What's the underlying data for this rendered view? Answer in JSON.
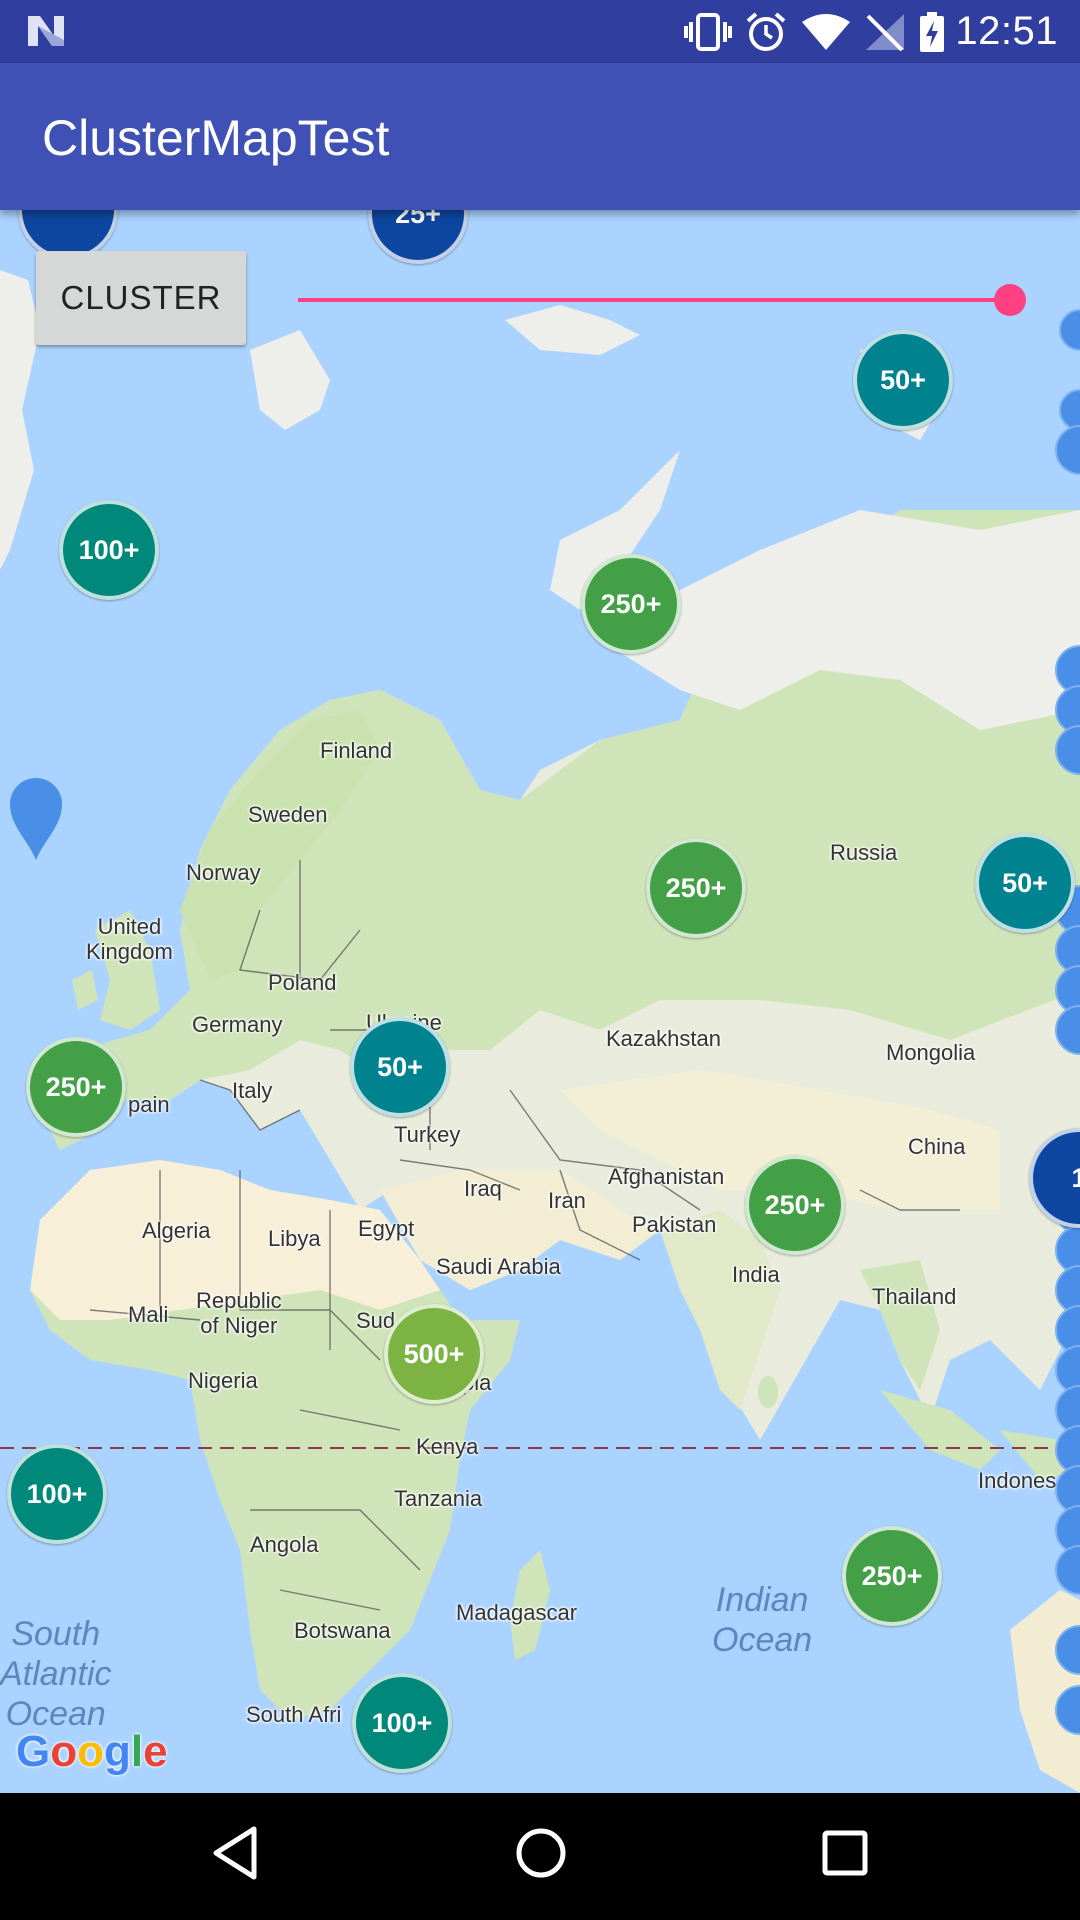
{
  "status_bar": {
    "time": "12:51",
    "icons": [
      "android-n-icon",
      "vibrate-icon",
      "alarm-icon",
      "wifi-icon",
      "no-sim-icon",
      "battery-charging-icon"
    ]
  },
  "app_bar": {
    "title": "ClusterMapTest"
  },
  "controls": {
    "cluster_button": "CLUSTER",
    "slider_value": 1.0
  },
  "map": {
    "countries": [
      {
        "id": "finland",
        "label": "Finland"
      },
      {
        "id": "sweden",
        "label": "Sweden"
      },
      {
        "id": "norway",
        "label": "Norway"
      },
      {
        "id": "united-kingdom",
        "label": "United\nKingdom"
      },
      {
        "id": "poland",
        "label": "Poland"
      },
      {
        "id": "germany",
        "label": "Germany"
      },
      {
        "id": "ukraine",
        "label": "Ukraine"
      },
      {
        "id": "italy",
        "label": "Italy"
      },
      {
        "id": "spain",
        "label": "pain"
      },
      {
        "id": "turkey",
        "label": "Turkey"
      },
      {
        "id": "russia",
        "label": "Russia"
      },
      {
        "id": "kazakhstan",
        "label": "Kazakhstan"
      },
      {
        "id": "mongolia",
        "label": "Mongolia"
      },
      {
        "id": "china",
        "label": "China"
      },
      {
        "id": "iraq",
        "label": "Iraq"
      },
      {
        "id": "iran",
        "label": "Iran"
      },
      {
        "id": "afghanistan",
        "label": "Afghanistan"
      },
      {
        "id": "pakistan",
        "label": "Pakistan"
      },
      {
        "id": "india",
        "label": "India"
      },
      {
        "id": "thailand",
        "label": "Thailand"
      },
      {
        "id": "indonesia",
        "label": "Indones"
      },
      {
        "id": "algeria",
        "label": "Algeria"
      },
      {
        "id": "libya",
        "label": "Libya"
      },
      {
        "id": "egypt",
        "label": "Egypt"
      },
      {
        "id": "saudi-arabia",
        "label": "Saudi Arabia"
      },
      {
        "id": "mali",
        "label": "Mali"
      },
      {
        "id": "niger",
        "label": "Republic\nof Niger"
      },
      {
        "id": "sudan",
        "label": "Sud"
      },
      {
        "id": "ethiopia",
        "label": "pia"
      },
      {
        "id": "nigeria",
        "label": "Nigeria"
      },
      {
        "id": "kenya",
        "label": "Kenya"
      },
      {
        "id": "tanzania",
        "label": "Tanzania"
      },
      {
        "id": "angola",
        "label": "Angola"
      },
      {
        "id": "madagascar",
        "label": "Madagascar"
      },
      {
        "id": "botswana",
        "label": "Botswana"
      },
      {
        "id": "south-africa",
        "label": "South Afri"
      }
    ],
    "oceans": [
      {
        "id": "south-atlantic",
        "label": "South\nAtlantic\nOcean"
      },
      {
        "id": "indian-ocean",
        "label": "Indian\nOcean"
      }
    ],
    "clusters": [
      {
        "id": "c1",
        "label": "",
        "color": "#0D47A1"
      },
      {
        "id": "c2",
        "label": "25+",
        "color": "#0D47A1"
      },
      {
        "id": "c3",
        "label": "50+",
        "color": "#00838F"
      },
      {
        "id": "c4",
        "label": "100+",
        "color": "#00897B"
      },
      {
        "id": "c5",
        "label": "250+",
        "color": "#43A047"
      },
      {
        "id": "c6",
        "label": "250+",
        "color": "#43A047"
      },
      {
        "id": "c7",
        "label": "50+",
        "color": "#00838F"
      },
      {
        "id": "c8",
        "label": "250+",
        "color": "#43A047"
      },
      {
        "id": "c9",
        "label": "50+",
        "color": "#00838F"
      },
      {
        "id": "c10",
        "label": "250+",
        "color": "#43A047"
      },
      {
        "id": "c11",
        "label": "500+",
        "color": "#7CB342"
      },
      {
        "id": "c12",
        "label": "100+",
        "color": "#00897B"
      },
      {
        "id": "c13",
        "label": "250+",
        "color": "#43A047"
      },
      {
        "id": "c14",
        "label": "100+",
        "color": "#00897B"
      },
      {
        "id": "c15",
        "label": "1",
        "color": "#0D47A1"
      }
    ],
    "marker_color": "#4A8FE7",
    "google_logo": "Google"
  },
  "nav_bar": {
    "buttons": [
      "back-icon",
      "home-icon",
      "recents-icon"
    ]
  }
}
